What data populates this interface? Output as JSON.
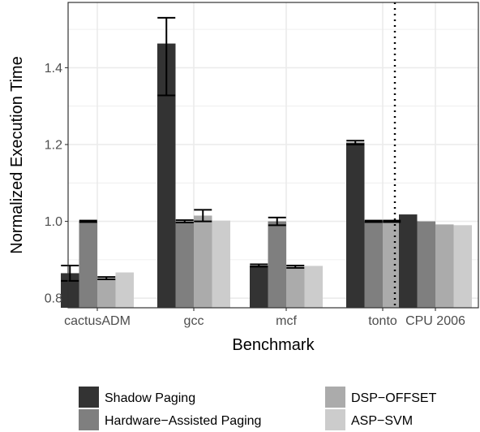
{
  "chart_data": {
    "type": "bar",
    "xlabel": "Benchmark",
    "ylabel": "Normalized Execution Time",
    "ylim": [
      0.775,
      1.57
    ],
    "yticks": [
      0.8,
      1.0,
      1.2,
      1.4
    ],
    "yticklabels": [
      "0.8",
      "1.0",
      "1.2",
      "1.4"
    ],
    "grid": true,
    "legend_position": "bottom",
    "categories": [
      "cactusADM",
      "gcc",
      "mcf",
      "tonto",
      "CPU 2006"
    ],
    "separator_after_category": "tonto",
    "series": [
      {
        "name": "Shadow Paging",
        "color": "#333333",
        "values": [
          0.865,
          1.463,
          0.885,
          1.205,
          1.018
        ],
        "errors": [
          [
            0.845,
            0.885
          ],
          [
            1.328,
            1.53
          ],
          [
            0.882,
            0.888
          ],
          [
            1.2,
            1.21
          ],
          null
        ]
      },
      {
        "name": "Hardware−Assisted Paging",
        "color": "#7f7f7f",
        "values": [
          1.0,
          1.0,
          1.0,
          1.0,
          1.0
        ],
        "errors": [
          [
            0.998,
            1.002
          ],
          [
            0.997,
            1.003
          ],
          [
            0.99,
            1.01
          ],
          [
            0.998,
            1.002
          ],
          null
        ]
      },
      {
        "name": "DSP−OFFSET",
        "color": "#ababab",
        "values": [
          0.852,
          1.015,
          0.882,
          1.0,
          0.992
        ],
        "errors": [
          [
            0.849,
            0.855
          ],
          [
            1.0,
            1.03
          ],
          [
            0.879,
            0.885
          ],
          [
            0.998,
            1.002
          ],
          null
        ]
      },
      {
        "name": "ASP−SVM",
        "color": "#cccccc",
        "values": [
          0.867,
          1.002,
          0.884,
          1.001,
          0.99
        ],
        "errors": [
          null,
          null,
          null,
          null,
          null
        ]
      }
    ]
  }
}
